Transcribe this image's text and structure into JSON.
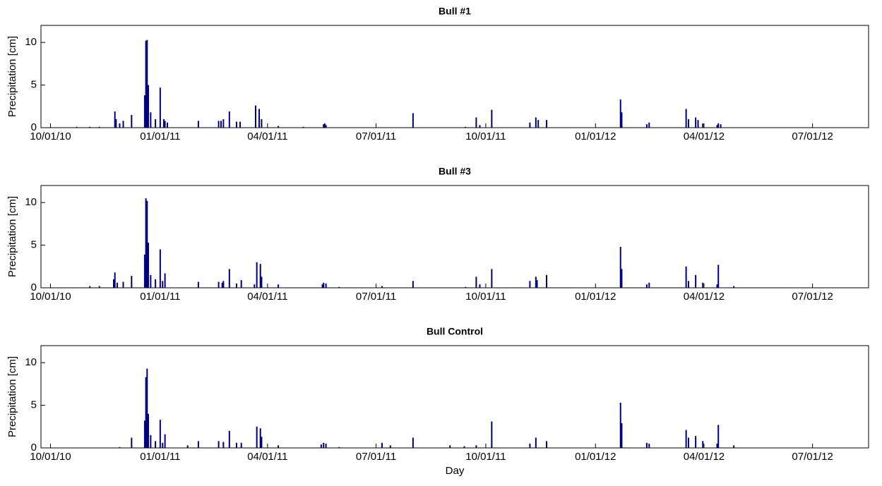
{
  "chart_data": [
    {
      "type": "bar",
      "title": "Bull #1",
      "ylabel": "Precipitation [cm]",
      "color": "#00007f",
      "xlim": [
        "2010-09-23",
        "2012-08-17"
      ],
      "ylim": [
        0,
        12
      ],
      "yticks": [
        0,
        5,
        10
      ],
      "xticks": [
        {
          "value": "2010-10-01",
          "label": "10/01/10"
        },
        {
          "value": "2011-01-01",
          "label": "01/01/11"
        },
        {
          "value": "2011-04-01",
          "label": "04/01/11"
        },
        {
          "value": "2011-07-01",
          "label": "07/01/11"
        },
        {
          "value": "2011-10-01",
          "label": "10/01/11"
        },
        {
          "value": "2012-01-01",
          "label": "01/01/12"
        },
        {
          "value": "2012-04-01",
          "label": "04/01/12"
        },
        {
          "value": "2012-07-01",
          "label": "07/01/12"
        }
      ],
      "x": [
        "2010-10-23",
        "2010-11-03",
        "2010-11-11",
        "2010-11-24",
        "2010-11-25",
        "2010-11-28",
        "2010-12-01",
        "2010-12-08",
        "2010-12-19",
        "2010-12-20",
        "2010-12-21",
        "2010-12-22",
        "2010-12-24",
        "2010-12-28",
        "2011-01-01",
        "2011-01-04",
        "2011-01-05",
        "2011-01-07",
        "2011-02-02",
        "2011-02-19",
        "2011-02-21",
        "2011-02-23",
        "2011-02-28",
        "2011-03-06",
        "2011-03-09",
        "2011-03-22",
        "2011-03-25",
        "2011-03-27",
        "2011-04-10",
        "2011-05-01",
        "2011-05-18",
        "2011-05-19",
        "2011-05-20",
        "2011-08-01",
        "2011-09-14",
        "2011-09-23",
        "2011-09-26",
        "2011-10-06",
        "2011-11-07",
        "2011-11-12",
        "2011-11-14",
        "2011-11-21",
        "2012-01-22",
        "2012-01-23",
        "2012-02-13",
        "2012-02-15",
        "2012-03-17",
        "2012-03-19",
        "2012-03-25",
        "2012-03-27",
        "2012-03-31",
        "2012-04-12",
        "2012-04-13",
        "2012-04-15"
      ],
      "values": [
        0.1,
        0.1,
        0.1,
        1.9,
        1.0,
        0.5,
        0.8,
        1.5,
        3.8,
        10.2,
        10.3,
        5.0,
        1.8,
        1.0,
        4.7,
        1.0,
        0.8,
        0.6,
        0.8,
        0.8,
        0.8,
        1.0,
        1.9,
        0.7,
        0.7,
        2.6,
        2.2,
        1.0,
        0.2,
        0.1,
        0.4,
        0.5,
        0.3,
        1.7,
        0.1,
        1.2,
        0.3,
        2.1,
        0.6,
        1.2,
        0.9,
        0.9,
        3.3,
        1.8,
        0.4,
        0.6,
        2.2,
        1.0,
        1.2,
        0.9,
        0.5,
        0.3,
        0.5,
        0.4
      ]
    },
    {
      "type": "bar",
      "title": "Bull #3",
      "ylabel": "Precipitation [cm]",
      "color": "#00007f",
      "xlim": [
        "2010-09-23",
        "2012-08-17"
      ],
      "ylim": [
        0,
        12
      ],
      "yticks": [
        0,
        5,
        10
      ],
      "xticks": [
        {
          "value": "2010-10-01",
          "label": "10/01/10"
        },
        {
          "value": "2011-01-01",
          "label": "01/01/11"
        },
        {
          "value": "2011-04-01",
          "label": "04/01/11"
        },
        {
          "value": "2011-07-01",
          "label": "07/01/11"
        },
        {
          "value": "2011-10-01",
          "label": "10/01/11"
        },
        {
          "value": "2012-01-01",
          "label": "01/01/12"
        },
        {
          "value": "2012-04-01",
          "label": "04/01/12"
        },
        {
          "value": "2012-07-01",
          "label": "07/01/12"
        }
      ],
      "x": [
        "2010-11-03",
        "2010-11-11",
        "2010-11-23",
        "2010-11-24",
        "2010-11-26",
        "2010-12-01",
        "2010-12-08",
        "2010-12-19",
        "2010-12-20",
        "2010-12-21",
        "2010-12-22",
        "2010-12-24",
        "2010-12-28",
        "2011-01-01",
        "2011-01-03",
        "2011-01-05",
        "2011-02-02",
        "2011-02-19",
        "2011-02-22",
        "2011-02-23",
        "2011-02-28",
        "2011-03-06",
        "2011-03-10",
        "2011-03-21",
        "2011-03-23",
        "2011-03-26",
        "2011-03-27",
        "2011-04-10",
        "2011-05-17",
        "2011-05-18",
        "2011-05-20",
        "2011-05-31",
        "2011-07-06",
        "2011-08-01",
        "2011-09-14",
        "2011-09-23",
        "2011-09-26",
        "2011-10-06",
        "2011-11-07",
        "2011-11-12",
        "2011-11-13",
        "2011-11-21",
        "2012-01-22",
        "2012-01-23",
        "2012-02-13",
        "2012-02-15",
        "2012-03-17",
        "2012-03-19",
        "2012-03-25",
        "2012-03-31",
        "2012-04-12",
        "2012-04-13",
        "2012-04-26"
      ],
      "values": [
        0.2,
        0.2,
        1.0,
        1.8,
        0.6,
        0.7,
        1.4,
        3.9,
        10.5,
        10.2,
        5.3,
        1.5,
        1.0,
        4.5,
        0.8,
        1.7,
        0.7,
        0.7,
        0.6,
        0.8,
        2.2,
        0.5,
        0.9,
        0.4,
        3.0,
        2.8,
        1.3,
        0.4,
        0.4,
        0.6,
        0.5,
        0.1,
        0.2,
        0.8,
        0.1,
        1.3,
        0.4,
        2.2,
        0.8,
        1.3,
        0.9,
        1.5,
        4.8,
        2.2,
        0.4,
        0.6,
        2.5,
        0.8,
        1.5,
        0.6,
        0.4,
        2.7,
        0.2
      ]
    },
    {
      "type": "bar",
      "title": "Bull Control",
      "ylabel": "Precipitation [cm]",
      "xlabel": "Day",
      "color": "#00007f",
      "xlim": [
        "2010-09-23",
        "2012-08-17"
      ],
      "ylim": [
        0,
        12
      ],
      "yticks": [
        0,
        5,
        10
      ],
      "xticks": [
        {
          "value": "2010-10-01",
          "label": "10/01/10"
        },
        {
          "value": "2011-01-01",
          "label": "01/01/11"
        },
        {
          "value": "2011-04-01",
          "label": "04/01/11"
        },
        {
          "value": "2011-07-01",
          "label": "07/01/11"
        },
        {
          "value": "2011-10-01",
          "label": "10/01/11"
        },
        {
          "value": "2012-01-01",
          "label": "01/01/12"
        },
        {
          "value": "2012-04-01",
          "label": "04/01/12"
        },
        {
          "value": "2012-07-01",
          "label": "07/01/12"
        }
      ],
      "x": [
        "2010-11-28",
        "2010-12-08",
        "2010-12-19",
        "2010-12-20",
        "2010-12-21",
        "2010-12-22",
        "2010-12-24",
        "2010-12-28",
        "2011-01-01",
        "2011-01-03",
        "2011-01-05",
        "2011-01-24",
        "2011-02-02",
        "2011-02-19",
        "2011-02-23",
        "2011-02-28",
        "2011-03-06",
        "2011-03-10",
        "2011-03-23",
        "2011-03-26",
        "2011-03-27",
        "2011-04-10",
        "2011-05-16",
        "2011-05-18",
        "2011-05-20",
        "2011-05-31",
        "2011-07-06",
        "2011-07-13",
        "2011-08-01",
        "2011-09-01",
        "2011-09-13",
        "2011-09-23",
        "2011-10-06",
        "2011-11-07",
        "2011-11-12",
        "2011-11-21",
        "2012-01-22",
        "2012-01-23",
        "2012-02-13",
        "2012-02-15",
        "2012-03-17",
        "2012-03-19",
        "2012-03-25",
        "2012-03-31",
        "2012-04-12",
        "2012-04-13",
        "2012-04-26"
      ],
      "values": [
        0.1,
        1.2,
        3.2,
        8.3,
        9.3,
        4.0,
        1.5,
        0.8,
        3.3,
        0.6,
        1.6,
        0.3,
        0.8,
        0.8,
        0.7,
        2.0,
        0.6,
        0.6,
        2.5,
        2.3,
        1.3,
        0.3,
        0.4,
        0.6,
        0.5,
        0.1,
        0.6,
        0.3,
        1.2,
        0.3,
        0.2,
        0.3,
        3.1,
        0.5,
        1.2,
        0.8,
        5.3,
        2.9,
        0.6,
        0.5,
        2.1,
        1.2,
        1.4,
        0.8,
        0.5,
        2.7,
        0.3
      ]
    }
  ]
}
